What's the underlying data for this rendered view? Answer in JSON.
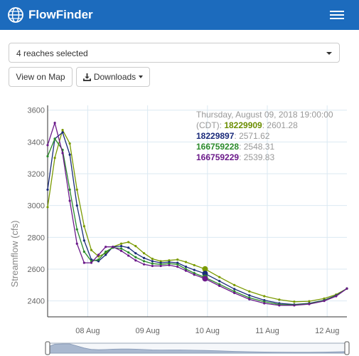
{
  "app": {
    "name": "FlowFinder",
    "icon": "globe-icon",
    "menu_icon": "hamburger-menu-icon",
    "navbar_color": "#1c6bbd"
  },
  "selector": {
    "value": "4 reaches selected"
  },
  "toolbar": {
    "map_label": "View on Map",
    "downloads_label": "Downloads",
    "downloads_icon": "download-icon"
  },
  "legend": {
    "timestamp": "Thursday, August 09, 2018 19:00:00",
    "tz_prefix": "(CDT): ",
    "entries": [
      {
        "id": "18229909",
        "value": "2601.28",
        "color": "#6b8e00"
      },
      {
        "id": "18229897",
        "value": "2571.62",
        "color": "#1a2a7a"
      },
      {
        "id": "166759228",
        "value": "2548.31",
        "color": "#2a8a2a"
      },
      {
        "id": "166759229",
        "value": "2539.83",
        "color": "#6b1a8a"
      }
    ]
  },
  "chart_data": {
    "type": "line",
    "ylabel": "Streamflow (cfs)",
    "y_ticks": [
      2400,
      2600,
      2800,
      3000,
      3200,
      3400,
      3600
    ],
    "x_ticks": [
      {
        "label": "08 Aug",
        "day": 1
      },
      {
        "label": "09 Aug",
        "day": 2
      },
      {
        "label": "10 Aug",
        "day": 3
      },
      {
        "label": "11 Aug",
        "day": 4
      },
      {
        "label": "12 Aug",
        "day": 5
      }
    ],
    "x_range_days": [
      0.33,
      5.33
    ],
    "ylim": [
      2300,
      3630
    ],
    "highlight_day": 2.96,
    "grid": true,
    "series": [
      {
        "name": "18229909",
        "color": "#7a9a00",
        "points": [
          [
            0.33,
            2990
          ],
          [
            0.45,
            3300
          ],
          [
            0.58,
            3475
          ],
          [
            0.7,
            3390
          ],
          [
            0.82,
            3100
          ],
          [
            0.94,
            2870
          ],
          [
            1.06,
            2720
          ],
          [
            1.18,
            2680
          ],
          [
            1.3,
            2700
          ],
          [
            1.42,
            2740
          ],
          [
            1.56,
            2760
          ],
          [
            1.68,
            2770
          ],
          [
            1.8,
            2745
          ],
          [
            1.94,
            2700
          ],
          [
            2.08,
            2665
          ],
          [
            2.22,
            2650
          ],
          [
            2.36,
            2655
          ],
          [
            2.5,
            2660
          ],
          [
            2.64,
            2645
          ],
          [
            2.78,
            2625
          ],
          [
            2.96,
            2601
          ],
          [
            3.2,
            2550
          ],
          [
            3.45,
            2500
          ],
          [
            3.7,
            2460
          ],
          [
            3.95,
            2430
          ],
          [
            4.2,
            2408
          ],
          [
            4.45,
            2395
          ],
          [
            4.7,
            2398
          ],
          [
            4.95,
            2415
          ],
          [
            5.15,
            2440
          ],
          [
            5.33,
            2478
          ]
        ]
      },
      {
        "name": "18229897",
        "color": "#1a2a7a",
        "points": [
          [
            0.33,
            3100
          ],
          [
            0.45,
            3420
          ],
          [
            0.58,
            3460
          ],
          [
            0.7,
            3320
          ],
          [
            0.82,
            3000
          ],
          [
            0.94,
            2780
          ],
          [
            1.06,
            2660
          ],
          [
            1.18,
            2650
          ],
          [
            1.3,
            2690
          ],
          [
            1.42,
            2740
          ],
          [
            1.56,
            2745
          ],
          [
            1.68,
            2735
          ],
          [
            1.8,
            2700
          ],
          [
            1.94,
            2670
          ],
          [
            2.08,
            2650
          ],
          [
            2.22,
            2640
          ],
          [
            2.36,
            2645
          ],
          [
            2.5,
            2640
          ],
          [
            2.64,
            2615
          ],
          [
            2.78,
            2595
          ],
          [
            2.96,
            2572
          ],
          [
            3.2,
            2525
          ],
          [
            3.45,
            2475
          ],
          [
            3.7,
            2435
          ],
          [
            3.95,
            2405
          ],
          [
            4.2,
            2385
          ],
          [
            4.45,
            2378
          ],
          [
            4.7,
            2385
          ],
          [
            4.95,
            2405
          ],
          [
            5.15,
            2435
          ],
          [
            5.33,
            2478
          ]
        ]
      },
      {
        "name": "166759228",
        "color": "#2a8a2a",
        "points": [
          [
            0.33,
            3310
          ],
          [
            0.45,
            3420
          ],
          [
            0.58,
            3350
          ],
          [
            0.7,
            3100
          ],
          [
            0.82,
            2850
          ],
          [
            0.94,
            2710
          ],
          [
            1.06,
            2650
          ],
          [
            1.18,
            2660
          ],
          [
            1.3,
            2710
          ],
          [
            1.42,
            2735
          ],
          [
            1.56,
            2730
          ],
          [
            1.68,
            2705
          ],
          [
            1.8,
            2675
          ],
          [
            1.94,
            2650
          ],
          [
            2.08,
            2635
          ],
          [
            2.22,
            2630
          ],
          [
            2.36,
            2635
          ],
          [
            2.5,
            2630
          ],
          [
            2.64,
            2600
          ],
          [
            2.78,
            2575
          ],
          [
            2.96,
            2548
          ],
          [
            3.2,
            2505
          ],
          [
            3.45,
            2460
          ],
          [
            3.7,
            2420
          ],
          [
            3.95,
            2395
          ],
          [
            4.2,
            2378
          ],
          [
            4.45,
            2375
          ],
          [
            4.7,
            2383
          ],
          [
            4.95,
            2403
          ],
          [
            5.15,
            2433
          ],
          [
            5.33,
            2478
          ]
        ]
      },
      {
        "name": "166759229",
        "color": "#6b1a8a",
        "points": [
          [
            0.33,
            3380
          ],
          [
            0.45,
            3520
          ],
          [
            0.58,
            3330
          ],
          [
            0.7,
            3030
          ],
          [
            0.82,
            2760
          ],
          [
            0.94,
            2640
          ],
          [
            1.06,
            2640
          ],
          [
            1.18,
            2690
          ],
          [
            1.3,
            2740
          ],
          [
            1.42,
            2740
          ],
          [
            1.56,
            2715
          ],
          [
            1.68,
            2685
          ],
          [
            1.8,
            2655
          ],
          [
            1.94,
            2630
          ],
          [
            2.08,
            2620
          ],
          [
            2.22,
            2620
          ],
          [
            2.36,
            2625
          ],
          [
            2.5,
            2615
          ],
          [
            2.64,
            2590
          ],
          [
            2.78,
            2565
          ],
          [
            2.96,
            2540
          ],
          [
            3.2,
            2495
          ],
          [
            3.45,
            2450
          ],
          [
            3.7,
            2410
          ],
          [
            3.95,
            2385
          ],
          [
            4.2,
            2372
          ],
          [
            4.45,
            2372
          ],
          [
            4.7,
            2380
          ],
          [
            4.95,
            2400
          ],
          [
            5.15,
            2430
          ],
          [
            5.33,
            2478
          ]
        ]
      }
    ],
    "range_selector": {
      "start_fraction": 0.0,
      "end_fraction": 1.0
    }
  }
}
